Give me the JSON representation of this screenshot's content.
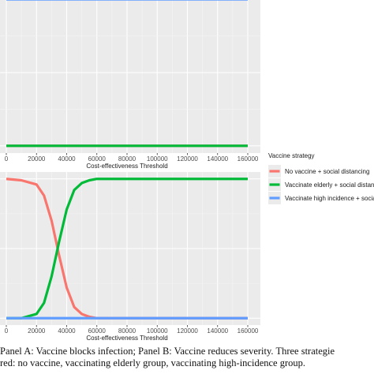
{
  "chart_data": [
    {
      "type": "line",
      "panel": "A",
      "xlabel": "Cost-effectiveness Threshold",
      "xlim": [
        0,
        160000
      ],
      "x_ticks": [
        "0",
        "20000",
        "40000",
        "60000",
        "80000",
        "100000",
        "120000",
        "140000",
        "160000"
      ],
      "ylim": [
        0,
        1
      ],
      "grid": true,
      "series": [
        {
          "name": "No vaccine + social distancing",
          "color": "#F8766D",
          "x": [
            0,
            160000
          ],
          "y": [
            0,
            0
          ]
        },
        {
          "name": "Vaccinate elderly + social distancing",
          "color": "#00BA38",
          "x": [
            0,
            160000
          ],
          "y": [
            0,
            0
          ]
        },
        {
          "name": "Vaccinate high incidence + social distancing",
          "color": "#619CFF",
          "x": [
            0,
            160000
          ],
          "y": [
            1,
            1
          ]
        }
      ]
    },
    {
      "type": "line",
      "panel": "B",
      "xlabel": "Cost-effectiveness Threshold",
      "xlim": [
        0,
        160000
      ],
      "x_ticks": [
        "0",
        "20000",
        "40000",
        "60000",
        "80000",
        "100000",
        "120000",
        "140000",
        "160000"
      ],
      "ylim": [
        0,
        1
      ],
      "grid": true,
      "series": [
        {
          "name": "No vaccine + social distancing",
          "color": "#F8766D",
          "x": [
            0,
            10000,
            20000,
            25000,
            30000,
            35000,
            40000,
            45000,
            50000,
            55000,
            60000,
            80000,
            160000
          ],
          "y": [
            1.0,
            0.99,
            0.96,
            0.88,
            0.7,
            0.45,
            0.22,
            0.08,
            0.03,
            0.01,
            0.0,
            0.0,
            0.0
          ]
        },
        {
          "name": "Vaccinate elderly + social distancing",
          "color": "#00BA38",
          "x": [
            0,
            10000,
            20000,
            25000,
            30000,
            35000,
            40000,
            45000,
            50000,
            55000,
            60000,
            80000,
            160000
          ],
          "y": [
            0.0,
            0.0,
            0.03,
            0.11,
            0.3,
            0.55,
            0.78,
            0.92,
            0.97,
            0.99,
            1.0,
            1.0,
            1.0
          ]
        },
        {
          "name": "Vaccinate high incidence + social distancing",
          "color": "#619CFF",
          "x": [
            0,
            160000
          ],
          "y": [
            0,
            0
          ]
        }
      ]
    }
  ],
  "legend": {
    "title": "Vaccine strategy",
    "position": "right",
    "items": [
      {
        "label": "No vaccine + social distancing",
        "color": "#F8766D"
      },
      {
        "label": "Vaccinate elderly + social distancin",
        "color": "#00BA38"
      },
      {
        "label": "Vaccinate high incidence + social d",
        "color": "#619CFF"
      }
    ]
  },
  "caption": {
    "line1": "Panel A: Vaccine blocks infection; Panel B: Vaccine reduces severity. Three strategie",
    "line2": "red: no vaccine, vaccinating elderly group, vaccinating high-incidence group."
  }
}
